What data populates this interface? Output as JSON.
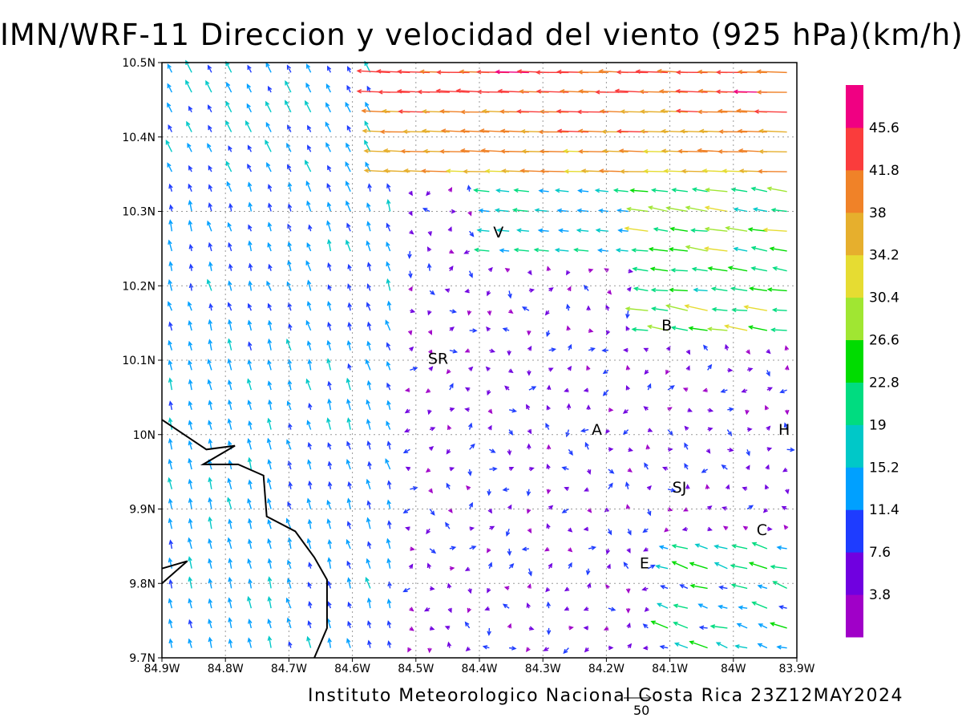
{
  "title": "IMN/WRF-11 Direccion y velocidad del viento (925 hPa)(km/h)",
  "footer": "Instituto Meteorologico Nacional Costa Rica 23Z12MAY2024",
  "reference_vector": {
    "label": "50",
    "speed": 50
  },
  "axes": {
    "x_ticks": [
      "84.9W",
      "84.8W",
      "84.7W",
      "84.6W",
      "84.5W",
      "84.4W",
      "84.3W",
      "84.2W",
      "84.1W",
      "84W",
      "83.9W"
    ],
    "y_ticks": [
      "9.7N",
      "9.8N",
      "9.9N",
      "10N",
      "10.1N",
      "10.2N",
      "10.3N",
      "10.4N",
      "10.5N"
    ],
    "lon_range": [
      -84.9,
      -83.9
    ],
    "lat_range": [
      9.7,
      10.5
    ],
    "grid": true
  },
  "colorbar": {
    "labels": [
      "3.8",
      "7.6",
      "11.4",
      "15.2",
      "19",
      "22.8",
      "26.6",
      "30.4",
      "34.2",
      "38",
      "41.8",
      "45.6"
    ],
    "colors": [
      "#a000c8",
      "#7000e0",
      "#1e3cff",
      "#00a0ff",
      "#00c8c8",
      "#00dc80",
      "#00dc00",
      "#a0e632",
      "#e6dc32",
      "#e6af2d",
      "#f08228",
      "#fa3c3c",
      "#f00082"
    ]
  },
  "cities": [
    {
      "code": "V",
      "lon": -84.37,
      "lat": 10.265
    },
    {
      "code": "SR",
      "lon": -84.465,
      "lat": 10.095
    },
    {
      "code": "B",
      "lon": -84.105,
      "lat": 10.14
    },
    {
      "code": "A",
      "lon": -84.215,
      "lat": 10.0
    },
    {
      "code": "SJ",
      "lon": -84.085,
      "lat": 9.922
    },
    {
      "code": "H",
      "lon": -83.92,
      "lat": 10.0
    },
    {
      "code": "C",
      "lon": -83.955,
      "lat": 9.865
    },
    {
      "code": "E",
      "lon": -84.14,
      "lat": 9.82
    }
  ]
}
